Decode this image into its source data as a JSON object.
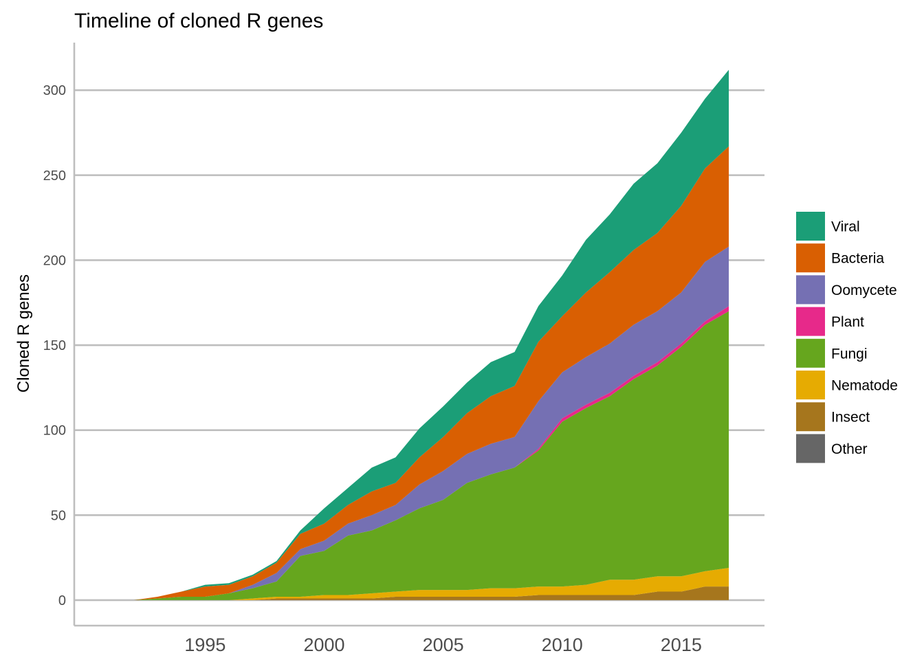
{
  "chart_data": {
    "type": "area",
    "stacked": true,
    "title": "Timeline of cloned R genes",
    "xlabel": "",
    "ylabel": "Cloned R genes",
    "xlim": [
      1989.5,
      2018.5
    ],
    "ylim": [
      -15,
      328
    ],
    "x_ticks": [
      1995,
      2000,
      2005,
      2010,
      2015
    ],
    "y_ticks": [
      0,
      50,
      100,
      150,
      200,
      250,
      300
    ],
    "grid": "horizontal",
    "legend_position": "right",
    "x": [
      1992,
      1993,
      1994,
      1995,
      1996,
      1997,
      1998,
      1999,
      2000,
      2001,
      2002,
      2003,
      2004,
      2005,
      2006,
      2007,
      2008,
      2009,
      2010,
      2011,
      2012,
      2013,
      2014,
      2015,
      2016,
      2017
    ],
    "series": [
      {
        "name": "Other",
        "color": "#666666",
        "values": [
          0,
          0,
          0,
          0,
          0,
          0,
          0,
          0,
          0,
          0,
          0,
          0,
          0,
          0,
          0,
          0,
          0,
          0,
          0,
          0,
          0,
          0,
          0,
          0,
          0,
          0
        ]
      },
      {
        "name": "Insect",
        "color": "#a6761d",
        "values": [
          0,
          0,
          0,
          0,
          0,
          0,
          1,
          1,
          1,
          1,
          1,
          2,
          2,
          2,
          2,
          2,
          2,
          3,
          3,
          3,
          3,
          3,
          5,
          5,
          8,
          8
        ]
      },
      {
        "name": "Nematode",
        "color": "#e6ab02",
        "values": [
          0,
          0,
          0,
          0,
          0,
          1,
          1,
          1,
          2,
          2,
          3,
          3,
          4,
          4,
          4,
          5,
          5,
          5,
          5,
          6,
          9,
          9,
          9,
          9,
          9,
          11
        ]
      },
      {
        "name": "Fungi",
        "color": "#66a61e",
        "values": [
          0,
          1,
          2,
          2,
          4,
          6,
          9,
          24,
          26,
          35,
          37,
          42,
          48,
          53,
          63,
          67,
          71,
          80,
          97,
          104,
          108,
          118,
          124,
          135,
          145,
          151
        ]
      },
      {
        "name": "Plant",
        "color": "#e7298a",
        "values": [
          0,
          0,
          0,
          0,
          0,
          0,
          0,
          0,
          0,
          0,
          0,
          0,
          0,
          0,
          0,
          0,
          0,
          1,
          2,
          2,
          2,
          2,
          2,
          2,
          2,
          3
        ]
      },
      {
        "name": "Oomycete",
        "color": "#7570b3",
        "values": [
          0,
          0,
          0,
          0,
          0,
          2,
          5,
          4,
          6,
          7,
          9,
          9,
          14,
          17,
          17,
          18,
          18,
          28,
          27,
          28,
          29,
          30,
          30,
          30,
          35,
          35
        ]
      },
      {
        "name": "Bacteria",
        "color": "#d95f02",
        "values": [
          0,
          1,
          3,
          6,
          5,
          5,
          6,
          9,
          10,
          11,
          14,
          13,
          16,
          20,
          24,
          28,
          30,
          35,
          33,
          38,
          42,
          44,
          46,
          51,
          55,
          59
        ]
      },
      {
        "name": "Viral",
        "color": "#1b9e77",
        "values": [
          0,
          0,
          0,
          1,
          1,
          1,
          1,
          2,
          9,
          10,
          14,
          15,
          17,
          18,
          18,
          20,
          20,
          21,
          24,
          31,
          34,
          39,
          41,
          43,
          41,
          45
        ]
      }
    ],
    "legend_order": [
      "Viral",
      "Bacteria",
      "Oomycete",
      "Plant",
      "Fungi",
      "Nematode",
      "Insect",
      "Other"
    ]
  }
}
